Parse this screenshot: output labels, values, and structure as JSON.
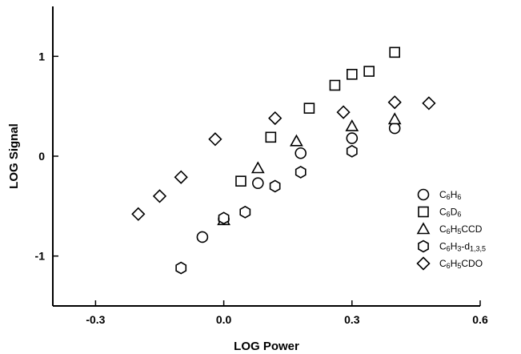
{
  "chart_data": {
    "type": "scatter",
    "title": "",
    "xlabel": "LOG Power",
    "ylabel": "LOG Signal",
    "xlim": [
      -0.4,
      0.6
    ],
    "ylim": [
      -1.5,
      1.5
    ],
    "xticks": [
      -0.3,
      0.0,
      0.3,
      0.6
    ],
    "xtick_labels": [
      "-0.3",
      "0.0",
      "0.3",
      "0.6"
    ],
    "yticks": [
      -1,
      0,
      1
    ],
    "ytick_labels": [
      "-1",
      "0",
      "1"
    ],
    "grid": false,
    "legend_position": "bottom-right",
    "series": [
      {
        "name_parts": [
          [
            "C",
            ""
          ],
          [
            "6",
            "sub"
          ],
          [
            "H",
            ""
          ],
          [
            "6",
            "sub"
          ]
        ],
        "marker": "circle",
        "points": [
          [
            -0.05,
            -0.81
          ],
          [
            0.0,
            -0.63
          ],
          [
            0.08,
            -0.27
          ],
          [
            0.18,
            0.03
          ],
          [
            0.3,
            0.18
          ],
          [
            0.4,
            0.28
          ]
        ]
      },
      {
        "name_parts": [
          [
            "C",
            ""
          ],
          [
            "6",
            "sub"
          ],
          [
            "D",
            ""
          ],
          [
            "6",
            "sub"
          ]
        ],
        "marker": "square",
        "points": [
          [
            0.04,
            -0.25
          ],
          [
            0.11,
            0.19
          ],
          [
            0.2,
            0.48
          ],
          [
            0.26,
            0.71
          ],
          [
            0.3,
            0.82
          ],
          [
            0.34,
            0.85
          ],
          [
            0.4,
            1.04
          ]
        ]
      },
      {
        "name_parts": [
          [
            "C",
            ""
          ],
          [
            "6",
            "sub"
          ],
          [
            "H",
            ""
          ],
          [
            "5",
            "sub"
          ],
          [
            "CCD",
            ""
          ]
        ],
        "marker": "triangle",
        "points": [
          [
            0.0,
            -0.64
          ],
          [
            0.08,
            -0.12
          ],
          [
            0.17,
            0.15
          ],
          [
            0.3,
            0.3
          ],
          [
            0.4,
            0.37
          ]
        ]
      },
      {
        "name_parts": [
          [
            "C",
            ""
          ],
          [
            "6",
            "sub"
          ],
          [
            "H",
            ""
          ],
          [
            "3",
            "sub"
          ],
          [
            "-d",
            ""
          ],
          [
            "1,3,5",
            "sub"
          ]
        ],
        "marker": "hexagon",
        "points": [
          [
            -0.1,
            -1.12
          ],
          [
            0.0,
            -0.62
          ],
          [
            0.05,
            -0.56
          ],
          [
            0.12,
            -0.3
          ],
          [
            0.18,
            -0.16
          ],
          [
            0.3,
            0.05
          ]
        ]
      },
      {
        "name_parts": [
          [
            "C",
            ""
          ],
          [
            "6",
            "sub"
          ],
          [
            "H",
            ""
          ],
          [
            "5",
            "sub"
          ],
          [
            "CDO",
            ""
          ]
        ],
        "marker": "diamond",
        "points": [
          [
            -0.2,
            -0.58
          ],
          [
            -0.15,
            -0.4
          ],
          [
            -0.1,
            -0.21
          ],
          [
            -0.02,
            0.17
          ],
          [
            0.12,
            0.38
          ],
          [
            0.28,
            0.44
          ],
          [
            0.4,
            0.54
          ],
          [
            0.48,
            0.53
          ]
        ]
      }
    ]
  }
}
